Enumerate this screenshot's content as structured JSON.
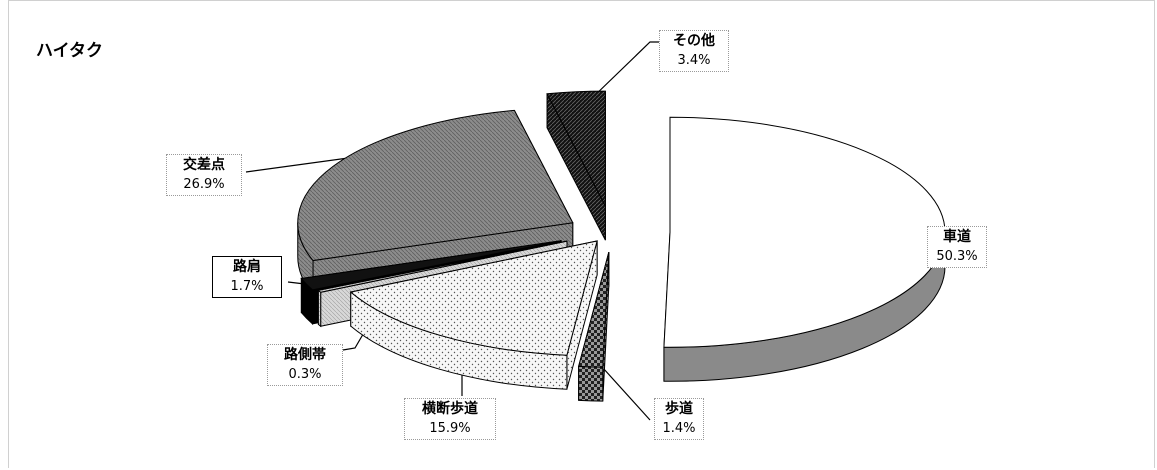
{
  "chart_data": {
    "type": "pie",
    "title": "ハイタク",
    "slices": [
      {
        "name": "車道",
        "value": 50.3,
        "label": "50.3%"
      },
      {
        "name": "歩道",
        "value": 1.4,
        "label": "1.4%"
      },
      {
        "name": "横断歩道",
        "value": 15.9,
        "label": "15.9%"
      },
      {
        "name": "路側帯",
        "value": 0.3,
        "label": "0.3%"
      },
      {
        "name": "路肩",
        "value": 1.7,
        "label": "1.7%"
      },
      {
        "name": "交差点",
        "value": 26.9,
        "label": "26.9%"
      },
      {
        "name": "その他",
        "value": 3.4,
        "label": "3.4%"
      }
    ],
    "colors": {
      "車道": "#ffffff",
      "歩道": "#5a5a5a",
      "横断歩道": "#f0f0f0",
      "路側帯": "#bdbdbd",
      "路肩": "#111111",
      "交差点": "#8c8c8c",
      "その他": "#111111"
    },
    "exploded": true,
    "three_d": true
  }
}
